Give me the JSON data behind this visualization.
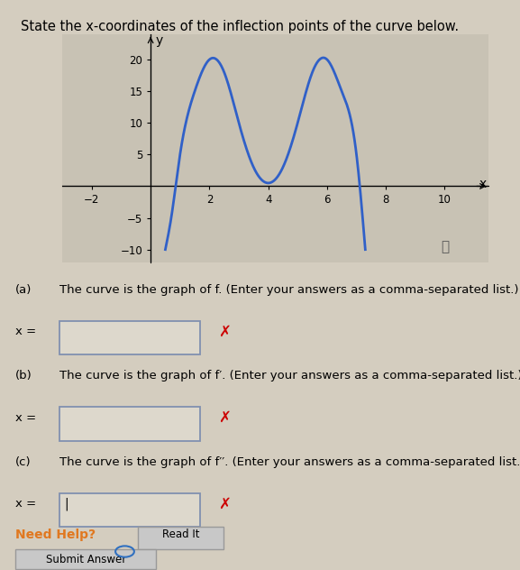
{
  "title": "State the x-coordinates of the inflection points of the curve below.",
  "title_fontsize": 10.5,
  "bg_color": "#d4cdbf",
  "plot_bg_color": "#c8c2b4",
  "curve_color": "#3060c8",
  "curve_linewidth": 2.0,
  "xlim": [
    -3,
    11.5
  ],
  "ylim": [
    -12,
    24
  ],
  "xticks": [
    -2,
    2,
    4,
    6,
    8,
    10
  ],
  "yticks": [
    -10,
    -5,
    5,
    10,
    15,
    20
  ],
  "xlabel": "x",
  "ylabel": "y",
  "parts": [
    {
      "label": "(a)",
      "text": "The curve is the graph of f. (Enter your answers as a comma-separated list.)"
    },
    {
      "label": "(b)",
      "text": "The curve is the graph of f′. (Enter your answers as a comma-separated list.)"
    },
    {
      "label": "(c)",
      "text": "The curve is the graph of f′′. (Enter your answers as a comma-separated list.)"
    }
  ],
  "need_help_color": "#e07820",
  "box_border_color": "#8090b0",
  "box_fill_color": "#ddd8cc",
  "x_mark_color": "#cc0000",
  "cursor_color": "#3070c0",
  "ctrl_x": [
    0.5,
    0.7,
    1.0,
    1.5,
    2.0,
    2.5,
    3.0,
    3.5,
    4.0,
    4.5,
    5.0,
    5.5,
    6.0,
    6.5,
    7.0,
    7.3
  ],
  "ctrl_y": [
    -10,
    -5,
    5,
    15,
    20,
    18,
    10,
    3,
    0.5,
    3,
    10,
    18,
    20,
    15,
    5,
    -10
  ]
}
